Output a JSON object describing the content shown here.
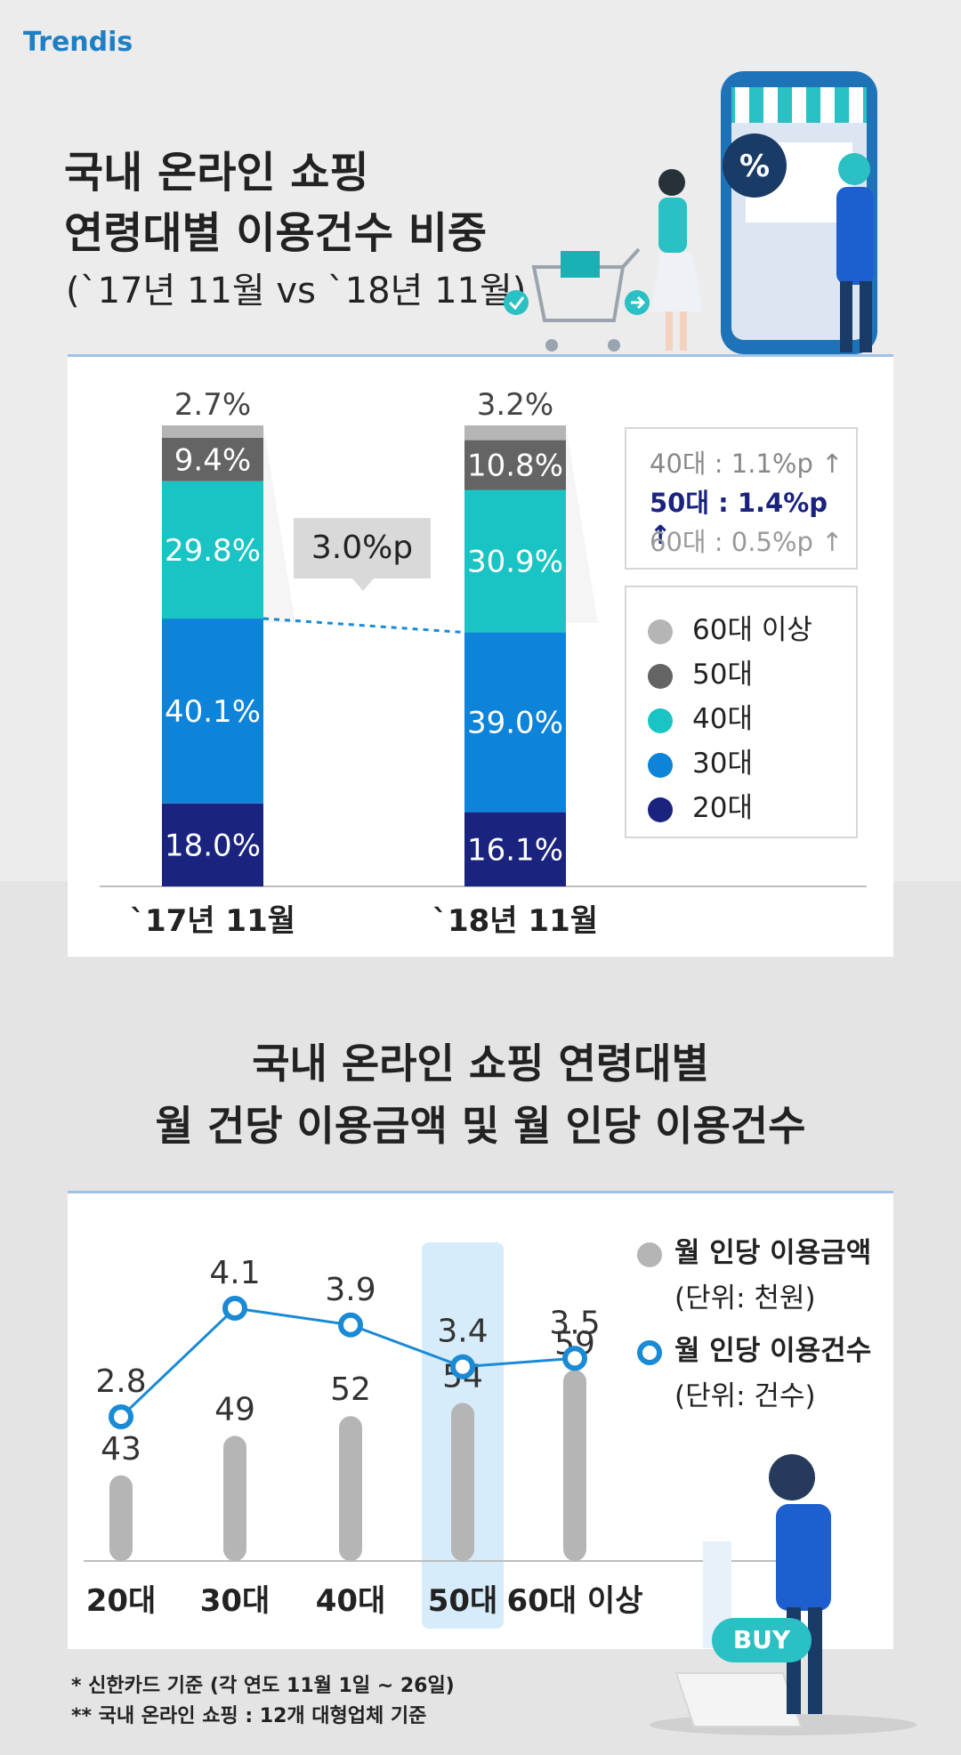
{
  "brand": {
    "logo": "Trendis"
  },
  "section1": {
    "title_line1": "국내 온라인 쇼핑",
    "title_line2": "연령대별 이용건수 비중",
    "subtitle": "(`17년 11월 vs `18년 11월)",
    "info": [
      {
        "text": "40대 : 1.1%p ↑"
      },
      {
        "text": "50대 : 1.4%p ↑"
      },
      {
        "text": "60대 : 0.5%p ↑"
      }
    ],
    "callout": "3.0%p"
  },
  "section2": {
    "title_line1": "국내 온라인 쇼핑 연령대별",
    "title_line2": "월 건당 이용금액 및 월 인당 이용건수",
    "legend": [
      {
        "label": "월 인당 이용금액",
        "unit": "(단위: 천원)"
      },
      {
        "label": "월 인당 이용건수",
        "unit": "(단위: 건수)"
      }
    ]
  },
  "footnotes": [
    "* 신한카드 기준 (각 연도 11월 1일 ~ 26일)",
    "** 국내 온라인 쇼핑 : 12개 대형업체 기준"
  ],
  "illustration": {
    "buy_label": "BUY",
    "percent_badge": "%"
  },
  "colors": {
    "age20": "#1a237e",
    "age30": "#0d84d9",
    "age40": "#1ac4c4",
    "age50": "#646464",
    "age60": "#b5b5b5",
    "line": "#1a8ad4",
    "highlight": "#d6ecfa"
  },
  "chart_data": [
    {
      "type": "bar",
      "stacked": true,
      "categories": [
        "`17년 11월",
        "`18년 11월"
      ],
      "series": [
        {
          "name": "20대",
          "values": [
            18.0,
            16.1
          ]
        },
        {
          "name": "30대",
          "values": [
            40.1,
            39.0
          ]
        },
        {
          "name": "40대",
          "values": [
            29.8,
            30.9
          ]
        },
        {
          "name": "50대",
          "values": [
            9.4,
            10.8
          ]
        },
        {
          "name": "60대 이상",
          "values": [
            2.7,
            3.2
          ]
        }
      ],
      "value_labels": [
        [
          "18.0%",
          "16.1%"
        ],
        [
          "40.1%",
          "39.0%"
        ],
        [
          "29.8%",
          "30.9%"
        ],
        [
          "9.4%",
          "10.8%"
        ],
        [
          "2.7%",
          "3.2%"
        ]
      ],
      "ylim": [
        0,
        100
      ],
      "legend_position": "right"
    },
    {
      "type": "bar",
      "categories": [
        "20대",
        "30대",
        "40대",
        "50대",
        "60대 이상"
      ],
      "series": [
        {
          "name": "월 인당 이용금액",
          "values": [
            43,
            49,
            52,
            54,
            59
          ],
          "chart": "bar"
        },
        {
          "name": "월 인당 이용건수",
          "values": [
            2.8,
            4.1,
            3.9,
            3.4,
            3.5
          ],
          "chart": "line"
        }
      ],
      "highlight_category": "50대",
      "legend_position": "top-right"
    }
  ]
}
